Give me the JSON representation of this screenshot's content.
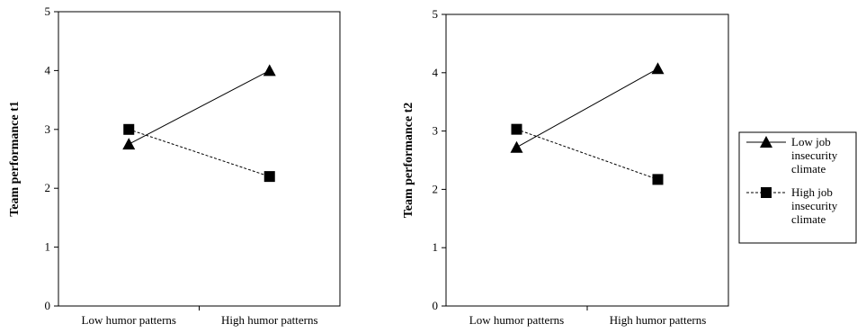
{
  "colors": {
    "axis": "#000000",
    "series": "#000000",
    "background": "#ffffff"
  },
  "legend": {
    "placement": "right",
    "entries": [
      {
        "lines": [
          "Low job",
          "insecurity",
          "climate"
        ],
        "marker": "triangle",
        "line_style": "solid"
      },
      {
        "lines": [
          "High job",
          "insecurity",
          "climate"
        ],
        "marker": "square",
        "line_style": "dotted"
      }
    ]
  },
  "chart_data": [
    {
      "type": "line",
      "title": "",
      "xlabel": "",
      "ylabel": "Team performance t1",
      "categories": [
        "Low humor patterns",
        "High humor patterns"
      ],
      "ylim": [
        0,
        5
      ],
      "yticks": [
        "0",
        "1",
        "2",
        "3",
        "4",
        "5"
      ],
      "grid": false,
      "series": [
        {
          "name": "Low job insecurity climate",
          "values": [
            2.75,
            4.0
          ],
          "marker": "triangle",
          "line_style": "solid"
        },
        {
          "name": "High job insecurity climate",
          "values": [
            3.0,
            2.2
          ],
          "marker": "square",
          "line_style": "dotted"
        }
      ]
    },
    {
      "type": "line",
      "title": "",
      "xlabel": "",
      "ylabel": "Team performance t2",
      "categories": [
        "Low humor patterns",
        "High humor patterns"
      ],
      "ylim": [
        0,
        5
      ],
      "yticks": [
        "0",
        "1",
        "2",
        "3",
        "4",
        "5"
      ],
      "grid": false,
      "series": [
        {
          "name": "Low job insecurity climate",
          "values": [
            2.72,
            4.07
          ],
          "marker": "triangle",
          "line_style": "solid"
        },
        {
          "name": "High job insecurity climate",
          "values": [
            3.03,
            2.17
          ],
          "marker": "square",
          "line_style": "dotted"
        }
      ]
    }
  ]
}
